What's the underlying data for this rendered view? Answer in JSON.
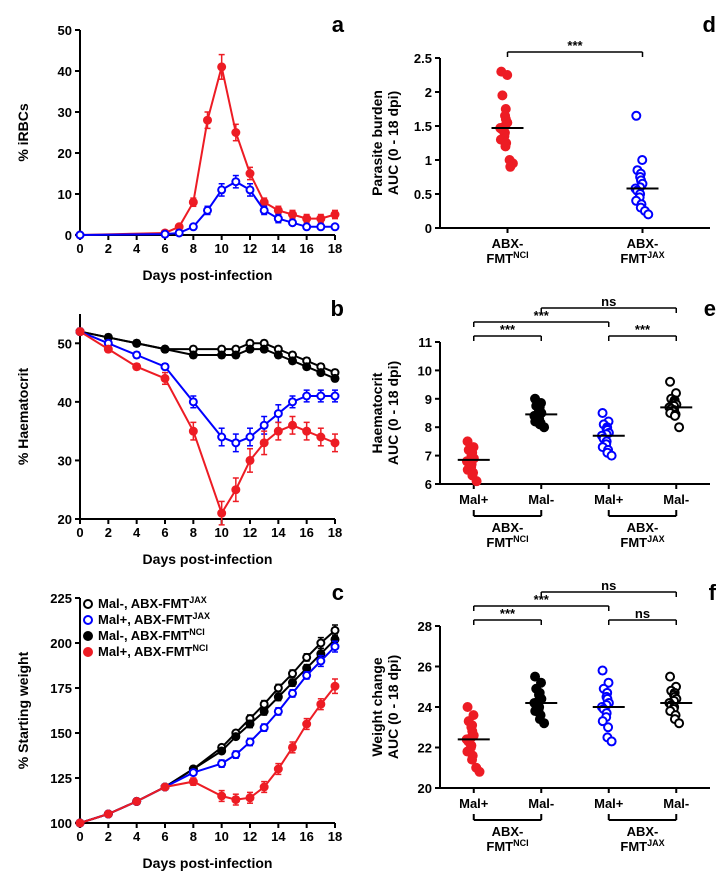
{
  "colors": {
    "red": "#ed1c24",
    "blue": "#0000ff",
    "black": "#000000",
    "white": "#ffffff",
    "axis": "#000000",
    "bg": "#ffffff"
  },
  "panel_a": {
    "label": "a",
    "type": "line",
    "xlabel": "Days post-infection",
    "ylabel": "% iRBCs",
    "xlim": [
      0,
      18
    ],
    "xtick_step": 2,
    "ylim": [
      0,
      50
    ],
    "ytick_step": 10,
    "series": [
      {
        "name": "Mal+, ABX-FMT^NCI",
        "color": "#ed1c24",
        "marker": "filled",
        "x": [
          0,
          6,
          7,
          8,
          9,
          10,
          11,
          12,
          13,
          14,
          15,
          16,
          17,
          18
        ],
        "y": [
          0,
          0.5,
          2,
          8,
          28,
          41,
          25,
          15,
          8,
          6,
          5,
          4,
          4,
          5
        ],
        "err": [
          0,
          0,
          0,
          1,
          2,
          3,
          2,
          1.5,
          1,
          1,
          1,
          1,
          1,
          1
        ]
      },
      {
        "name": "Mal+, ABX-FMT^JAX",
        "color": "#0000ff",
        "marker": "open",
        "x": [
          0,
          6,
          7,
          8,
          9,
          10,
          11,
          12,
          13,
          14,
          15,
          16,
          17,
          18
        ],
        "y": [
          0,
          0.2,
          0.5,
          2,
          6,
          11,
          13,
          11,
          6,
          4,
          3,
          2,
          2,
          2
        ],
        "err": [
          0,
          0,
          0,
          0.5,
          1,
          1.5,
          1.5,
          1.5,
          1,
          1,
          0.5,
          0.5,
          0.5,
          0.5
        ]
      }
    ]
  },
  "panel_b": {
    "label": "b",
    "type": "line",
    "xlabel": "Days post-infection",
    "ylabel": "% Haematocrit",
    "xlim": [
      0,
      18
    ],
    "xtick_step": 2,
    "ylim": [
      20,
      55
    ],
    "yticks": [
      20,
      30,
      40,
      50
    ],
    "series": [
      {
        "name": "Mal-, ABX-FMT^JAX",
        "color": "#000000",
        "marker": "open",
        "x": [
          0,
          2,
          4,
          6,
          8,
          10,
          11,
          12,
          13,
          14,
          15,
          16,
          17,
          18
        ],
        "y": [
          52,
          51,
          50,
          49,
          49,
          49,
          49,
          50,
          50,
          49,
          48,
          47,
          46,
          45
        ],
        "err": [
          0.5,
          0.5,
          0.5,
          0.5,
          0.5,
          0.5,
          0.5,
          0.5,
          0.5,
          0.5,
          0.5,
          0.5,
          0.5,
          0.5
        ]
      },
      {
        "name": "Mal-, ABX-FMT^NCI",
        "color": "#000000",
        "marker": "filled",
        "x": [
          0,
          2,
          4,
          6,
          8,
          10,
          11,
          12,
          13,
          14,
          15,
          16,
          17,
          18
        ],
        "y": [
          52,
          51,
          50,
          49,
          48,
          48,
          48,
          49,
          49,
          48,
          47,
          46,
          45,
          44
        ],
        "err": [
          0.5,
          0.5,
          0.5,
          0.5,
          0.5,
          0.5,
          0.5,
          0.5,
          0.5,
          0.5,
          0.5,
          0.5,
          0.5,
          0.5
        ]
      },
      {
        "name": "Mal+, ABX-FMT^JAX",
        "color": "#0000ff",
        "marker": "open",
        "x": [
          0,
          2,
          4,
          6,
          8,
          10,
          11,
          12,
          13,
          14,
          15,
          16,
          17,
          18
        ],
        "y": [
          52,
          50,
          48,
          46,
          40,
          34,
          33,
          34,
          36,
          38,
          40,
          41,
          41,
          41
        ],
        "err": [
          0.5,
          0.5,
          0.5,
          0.5,
          1,
          1.5,
          1.5,
          1.5,
          1.5,
          1.5,
          1,
          1,
          1,
          1
        ]
      },
      {
        "name": "Mal+, ABX-FMT^NCI",
        "color": "#ed1c24",
        "marker": "filled",
        "x": [
          0,
          2,
          4,
          6,
          8,
          10,
          11,
          12,
          13,
          14,
          15,
          16,
          17,
          18
        ],
        "y": [
          52,
          49,
          46,
          44,
          35,
          21,
          25,
          30,
          33,
          35,
          36,
          35,
          34,
          33
        ],
        "err": [
          0.5,
          0.5,
          0.5,
          1,
          1.5,
          2,
          2,
          2,
          2,
          1.5,
          1.5,
          1.5,
          1.5,
          1.5
        ]
      }
    ]
  },
  "panel_c": {
    "label": "c",
    "type": "line",
    "xlabel": "Days post-infection",
    "ylabel": "% Starting weight",
    "xlim": [
      0,
      18
    ],
    "xtick_step": 2,
    "ylim": [
      100,
      225
    ],
    "ytick_step": 25,
    "legend": [
      {
        "text": "Mal-, ABX-FMT",
        "sup": "JAX",
        "color": "#000000",
        "marker": "open"
      },
      {
        "text": "Mal+, ABX-FMT",
        "sup": "JAX",
        "color": "#0000ff",
        "marker": "open"
      },
      {
        "text": "Mal-, ABX-FMT",
        "sup": "NCI",
        "color": "#000000",
        "marker": "filled"
      },
      {
        "text": "Mal+, ABX-FMT",
        "sup": "NCI",
        "color": "#ed1c24",
        "marker": "filled"
      }
    ],
    "series": [
      {
        "color": "#000000",
        "marker": "open",
        "x": [
          0,
          2,
          4,
          6,
          8,
          10,
          11,
          12,
          13,
          14,
          15,
          16,
          17,
          18
        ],
        "y": [
          100,
          105,
          112,
          120,
          130,
          142,
          150,
          158,
          166,
          175,
          183,
          192,
          200,
          207
        ],
        "err": [
          0,
          1,
          1,
          1,
          1.5,
          1.5,
          1.5,
          2,
          2,
          2,
          2,
          2,
          3,
          3
        ]
      },
      {
        "color": "#000000",
        "marker": "filled",
        "x": [
          0,
          2,
          4,
          6,
          8,
          10,
          11,
          12,
          13,
          14,
          15,
          16,
          17,
          18
        ],
        "y": [
          100,
          105,
          112,
          120,
          130,
          140,
          148,
          155,
          162,
          170,
          178,
          186,
          194,
          202
        ],
        "err": [
          0,
          1,
          1,
          1,
          1.5,
          1.5,
          1.5,
          2,
          2,
          2,
          2,
          2,
          3,
          3
        ]
      },
      {
        "color": "#0000ff",
        "marker": "open",
        "x": [
          0,
          2,
          4,
          6,
          8,
          10,
          11,
          12,
          13,
          14,
          15,
          16,
          17,
          18
        ],
        "y": [
          100,
          105,
          112,
          120,
          128,
          133,
          138,
          145,
          153,
          162,
          172,
          182,
          190,
          198
        ],
        "err": [
          0,
          1,
          1,
          1,
          1.5,
          2,
          2,
          2,
          2,
          2,
          2,
          2,
          3,
          3
        ]
      },
      {
        "color": "#ed1c24",
        "marker": "filled",
        "x": [
          0,
          2,
          4,
          6,
          8,
          10,
          11,
          12,
          13,
          14,
          15,
          16,
          17,
          18
        ],
        "y": [
          100,
          105,
          112,
          120,
          123,
          115,
          113,
          114,
          120,
          130,
          142,
          155,
          166,
          176
        ],
        "err": [
          0,
          1,
          1,
          1,
          2,
          3,
          3,
          3,
          3,
          3,
          3,
          3,
          3,
          4
        ]
      }
    ]
  },
  "panel_d": {
    "label": "d",
    "type": "scatter",
    "ylabel": "Parasite burden\nAUC (0 - 18 dpi)",
    "ylim": [
      0,
      2.5
    ],
    "ytick_step": 0.5,
    "groups": [
      {
        "label": "ABX-\nFMT",
        "sup": "NCI",
        "color": "#ed1c24",
        "marker": "filled",
        "median": 1.47,
        "points": [
          2.3,
          2.25,
          1.95,
          1.75,
          1.65,
          1.6,
          1.55,
          1.5,
          1.47,
          1.45,
          1.4,
          1.35,
          1.3,
          1.25,
          1.2,
          1.0,
          0.95,
          0.9
        ]
      },
      {
        "label": "ABX-\nFMT",
        "sup": "JAX",
        "color": "#0000ff",
        "marker": "open",
        "median": 0.58,
        "points": [
          1.65,
          1.0,
          0.85,
          0.8,
          0.75,
          0.7,
          0.65,
          0.6,
          0.58,
          0.55,
          0.5,
          0.45,
          0.4,
          0.35,
          0.3,
          0.25,
          0.2
        ]
      }
    ],
    "sig": [
      {
        "from": 0,
        "to": 1,
        "text": "***"
      }
    ]
  },
  "panel_e": {
    "label": "e",
    "type": "scatter",
    "ylabel": "Haematocrit\nAUC (0 - 18 dpi)",
    "ylim": [
      6,
      11
    ],
    "ytick_step": 1,
    "groups": [
      {
        "label": "Mal+",
        "color": "#ed1c24",
        "marker": "filled",
        "median": 6.85,
        "points": [
          7.5,
          7.3,
          7.2,
          7.1,
          7.0,
          6.95,
          6.9,
          6.85,
          6.8,
          6.75,
          6.7,
          6.6,
          6.5,
          6.4,
          6.3,
          6.1
        ]
      },
      {
        "label": "Mal-",
        "color": "#000000",
        "marker": "filled",
        "median": 8.45,
        "points": [
          9.0,
          8.85,
          8.75,
          8.7,
          8.6,
          8.55,
          8.5,
          8.45,
          8.4,
          8.35,
          8.3,
          8.25,
          8.2,
          8.15,
          8.1,
          8.0
        ]
      },
      {
        "label": "Mal+",
        "color": "#0000ff",
        "marker": "open",
        "median": 7.7,
        "points": [
          8.5,
          8.2,
          8.1,
          8.0,
          7.95,
          7.9,
          7.8,
          7.75,
          7.7,
          7.6,
          7.5,
          7.4,
          7.3,
          7.2,
          7.1,
          7.0
        ]
      },
      {
        "label": "Mal-",
        "color": "#000000",
        "marker": "open",
        "median": 8.7,
        "points": [
          9.6,
          9.2,
          9.0,
          8.95,
          8.9,
          8.85,
          8.8,
          8.75,
          8.7,
          8.65,
          8.6,
          8.55,
          8.5,
          8.45,
          8.4,
          8.0
        ]
      }
    ],
    "bottom_labels": [
      {
        "text": "ABX-\nFMT",
        "sup": "NCI"
      },
      {
        "text": "ABX-\nFMT",
        "sup": "JAX"
      }
    ],
    "sig": [
      {
        "from": 0,
        "to": 1,
        "text": "***",
        "level": 0
      },
      {
        "from": 0,
        "to": 2,
        "text": "***",
        "level": 1
      },
      {
        "from": 1,
        "to": 3,
        "text": "ns",
        "level": 2
      },
      {
        "from": 2,
        "to": 3,
        "text": "***",
        "level": 0
      }
    ]
  },
  "panel_f": {
    "label": "f",
    "type": "scatter",
    "ylabel": "Weight change\nAUC (0 - 18 dpi)",
    "ylim": [
      20,
      28
    ],
    "ytick_step": 2,
    "groups": [
      {
        "label": "Mal+",
        "color": "#ed1c24",
        "marker": "filled",
        "median": 22.4,
        "points": [
          24.0,
          23.6,
          23.3,
          23.1,
          23.0,
          22.8,
          22.6,
          22.5,
          22.4,
          22.3,
          22.1,
          22.0,
          21.8,
          21.6,
          21.4,
          21.0,
          20.8
        ]
      },
      {
        "label": "Mal-",
        "color": "#000000",
        "marker": "filled",
        "median": 24.2,
        "points": [
          25.5,
          25.2,
          24.9,
          24.7,
          24.6,
          24.5,
          24.4,
          24.3,
          24.2,
          24.1,
          24.0,
          23.9,
          23.8,
          23.6,
          23.4,
          23.2
        ]
      },
      {
        "label": "Mal+",
        "color": "#0000ff",
        "marker": "open",
        "median": 24.0,
        "points": [
          25.8,
          25.2,
          24.9,
          24.7,
          24.5,
          24.4,
          24.2,
          24.1,
          24.0,
          23.9,
          23.7,
          23.5,
          23.3,
          23.0,
          22.5,
          22.3
        ]
      },
      {
        "label": "Mal-",
        "color": "#000000",
        "marker": "open",
        "median": 24.2,
        "points": [
          25.5,
          25.0,
          24.8,
          24.7,
          24.6,
          24.5,
          24.4,
          24.3,
          24.2,
          24.1,
          24.0,
          23.9,
          23.8,
          23.6,
          23.4,
          23.2
        ]
      }
    ],
    "bottom_labels": [
      {
        "text": "ABX-\nFMT",
        "sup": "NCI"
      },
      {
        "text": "ABX-\nFMT",
        "sup": "JAX"
      }
    ],
    "sig": [
      {
        "from": 0,
        "to": 1,
        "text": "***",
        "level": 0
      },
      {
        "from": 0,
        "to": 2,
        "text": "***",
        "level": 1
      },
      {
        "from": 1,
        "to": 3,
        "text": "ns",
        "level": 2
      },
      {
        "from": 2,
        "to": 3,
        "text": "ns",
        "level": 0
      }
    ]
  }
}
